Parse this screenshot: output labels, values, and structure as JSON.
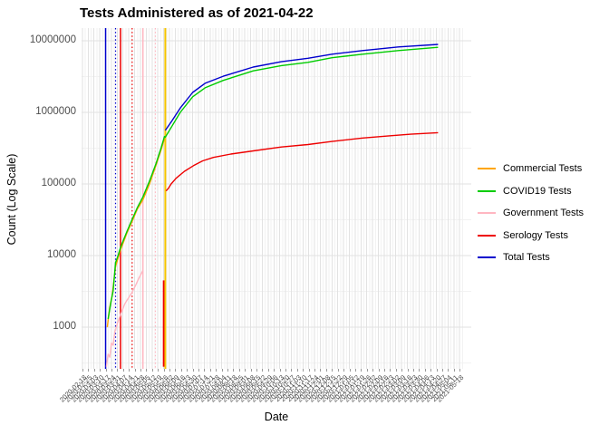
{
  "chart_data": {
    "type": "line",
    "title": "Tests Administered as of 2021-04-22",
    "xlabel": "Date",
    "ylabel": "Count (Log Scale)",
    "y_scale": "log10",
    "grid": true,
    "legend_position": "right",
    "y_ticks": [
      1000,
      10000,
      100000,
      1000000,
      10000000
    ],
    "y_domain": [
      262,
      15000000
    ],
    "x_domain": [
      "2020-02-17",
      "2021-06-01"
    ],
    "x_tick_dates": [
      "2020-02-18",
      "2020-02-25",
      "2020-03-03",
      "2020-03-10",
      "2020-03-17",
      "2020-03-24",
      "2020-03-31",
      "2020-04-07",
      "2020-04-14",
      "2020-04-21",
      "2020-04-28",
      "2020-05-05",
      "2020-05-12",
      "2020-05-19",
      "2020-05-26",
      "2020-06-02",
      "2020-06-09",
      "2020-06-16",
      "2020-06-23",
      "2020-06-30",
      "2020-07-07",
      "2020-07-14",
      "2020-07-21",
      "2020-07-28",
      "2020-08-04",
      "2020-08-11",
      "2020-08-18",
      "2020-08-25",
      "2020-09-01",
      "2020-09-08",
      "2020-09-15",
      "2020-09-22",
      "2020-09-29",
      "2020-10-06",
      "2020-10-13",
      "2020-10-20",
      "2020-10-27",
      "2020-11-03",
      "2020-11-10",
      "2020-11-17",
      "2020-11-24",
      "2020-12-01",
      "2020-12-08",
      "2020-12-15",
      "2020-12-22",
      "2020-12-29",
      "2021-01-05",
      "2021-01-12",
      "2021-01-19",
      "2021-01-26",
      "2021-02-02",
      "2021-02-09",
      "2021-02-16",
      "2021-02-23",
      "2021-03-02",
      "2021-03-09",
      "2021-03-16",
      "2021-03-23",
      "2021-03-30",
      "2021-04-06",
      "2021-04-13",
      "2021-04-20",
      "2021-04-27",
      "2021-05-04",
      "2021-05-11",
      "2021-05-18"
    ],
    "series": [
      {
        "name": "Commercial Tests",
        "color": "#FFA500",
        "points": [
          [
            "2020-03-19",
            1000
          ],
          [
            "2020-03-22",
            1900
          ],
          [
            "2020-03-25",
            2800
          ],
          [
            "2020-03-29",
            7000
          ],
          [
            "2020-04-04",
            12000
          ],
          [
            "2020-04-12",
            21000
          ],
          [
            "2020-04-18",
            30000
          ],
          [
            "2020-04-24",
            44000
          ],
          [
            "2020-05-01",
            60000
          ],
          [
            "2020-05-09",
            100000
          ],
          [
            "2020-05-17",
            185000
          ],
          [
            "2020-05-23",
            300000
          ],
          [
            "2020-05-27",
            430000
          ]
        ]
      },
      {
        "name": "COVID19 Tests",
        "color": "#00CC00",
        "points": [
          [
            "2020-03-20",
            1300
          ],
          [
            "2020-03-23",
            2100
          ],
          [
            "2020-03-26",
            3200
          ],
          [
            "2020-03-29",
            8000
          ],
          [
            "2020-04-01",
            10000
          ],
          [
            "2020-04-04",
            13000
          ],
          [
            "2020-04-08",
            17000
          ],
          [
            "2020-04-12",
            22000
          ],
          [
            "2020-04-18",
            32000
          ],
          [
            "2020-04-24",
            46000
          ],
          [
            "2020-05-01",
            66000
          ],
          [
            "2020-05-09",
            110000
          ],
          [
            "2020-05-17",
            195000
          ],
          [
            "2020-05-23",
            320000
          ],
          [
            "2020-05-27",
            460000
          ],
          [
            "2020-05-28",
            450000
          ],
          [
            "2020-06-05",
            640000
          ],
          [
            "2020-06-15",
            1000000
          ],
          [
            "2020-06-30",
            1650000
          ],
          [
            "2020-07-15",
            2200000
          ],
          [
            "2020-08-06",
            2800000
          ],
          [
            "2020-09-11",
            3800000
          ],
          [
            "2020-10-15",
            4500000
          ],
          [
            "2020-11-16",
            5000000
          ],
          [
            "2020-12-15",
            5800000
          ],
          [
            "2021-01-21",
            6500000
          ],
          [
            "2021-03-05",
            7300000
          ],
          [
            "2021-04-22",
            8100000
          ]
        ]
      },
      {
        "name": "Government Tests",
        "color": "#FFB6C1",
        "points": [
          [
            "2020-03-18",
            280
          ],
          [
            "2020-03-20",
            420
          ],
          [
            "2020-03-22",
            380
          ],
          [
            "2020-03-24",
            600
          ],
          [
            "2020-03-26",
            560
          ],
          [
            "2020-03-28",
            850
          ],
          [
            "2020-03-31",
            1100
          ],
          [
            "2020-04-03",
            1400
          ],
          [
            "2020-04-06",
            1700
          ],
          [
            "2020-04-09",
            2100
          ],
          [
            "2020-04-12",
            2400
          ],
          [
            "2020-04-15",
            2700
          ],
          [
            "2020-04-18",
            3100
          ],
          [
            "2020-04-22",
            3800
          ],
          [
            "2020-04-26",
            4800
          ],
          [
            "2020-04-29",
            5600
          ],
          [
            "2020-05-01",
            6200
          ]
        ]
      },
      {
        "name": "Serology Tests",
        "color": "#EE0000",
        "points": [
          [
            "2020-05-29",
            80000
          ],
          [
            "2020-06-01",
            88000
          ],
          [
            "2020-06-04",
            100000
          ],
          [
            "2020-06-10",
            120000
          ],
          [
            "2020-06-20",
            150000
          ],
          [
            "2020-07-01",
            180000
          ],
          [
            "2020-07-12",
            210000
          ],
          [
            "2020-07-25",
            235000
          ],
          [
            "2020-08-15",
            262000
          ],
          [
            "2020-09-11",
            290000
          ],
          [
            "2020-10-15",
            328000
          ],
          [
            "2020-11-16",
            355000
          ],
          [
            "2020-12-15",
            392000
          ],
          [
            "2021-01-21",
            438000
          ],
          [
            "2021-02-20",
            468000
          ],
          [
            "2021-03-20",
            495000
          ],
          [
            "2021-04-22",
            520000
          ]
        ]
      },
      {
        "name": "Total Tests",
        "color": "#0000CD",
        "points": [
          [
            "2020-05-28",
            560000
          ],
          [
            "2020-06-05",
            760000
          ],
          [
            "2020-06-15",
            1150000
          ],
          [
            "2020-06-30",
            1900000
          ],
          [
            "2020-07-15",
            2550000
          ],
          [
            "2020-08-06",
            3200000
          ],
          [
            "2020-09-11",
            4300000
          ],
          [
            "2020-10-15",
            5100000
          ],
          [
            "2020-11-16",
            5700000
          ],
          [
            "2020-12-15",
            6500000
          ],
          [
            "2021-01-21",
            7300000
          ],
          [
            "2021-03-05",
            8200000
          ],
          [
            "2021-04-22",
            8900000
          ]
        ]
      }
    ],
    "serology_spike": {
      "color": "#EE0000",
      "points": [
        [
          "2020-05-26",
          280
        ],
        [
          "2020-05-26",
          4500
        ]
      ]
    },
    "event_rules": [
      {
        "color": "#0000CD",
        "style": "solid",
        "date": "2020-03-17"
      },
      {
        "color": "#0000CD",
        "style": "dotted",
        "date": "2020-03-29"
      },
      {
        "color": "#EE0000",
        "style": "solid",
        "date": "2020-04-04"
      },
      {
        "color": "#EE0000",
        "style": "dotted",
        "date": "2020-04-18"
      },
      {
        "color": "#FFB6C1",
        "style": "solid",
        "date": "2020-05-01"
      },
      {
        "color": "#FFB6C1",
        "style": "dotted",
        "date": "2020-05-16"
      },
      {
        "color": "#F5C400",
        "style": "solid",
        "date": "2020-05-28"
      }
    ],
    "grid_colors": {
      "major": "#e2e2e2",
      "minor": "#f2f2f2"
    }
  },
  "legend": {
    "entries": [
      {
        "label": "Commercial Tests",
        "color": "#FFA500"
      },
      {
        "label": "COVID19 Tests",
        "color": "#00CC00"
      },
      {
        "label": "Government Tests",
        "color": "#FFB6C1"
      },
      {
        "label": "Serology Tests",
        "color": "#EE0000"
      },
      {
        "label": "Total Tests",
        "color": "#0000CD"
      }
    ]
  }
}
